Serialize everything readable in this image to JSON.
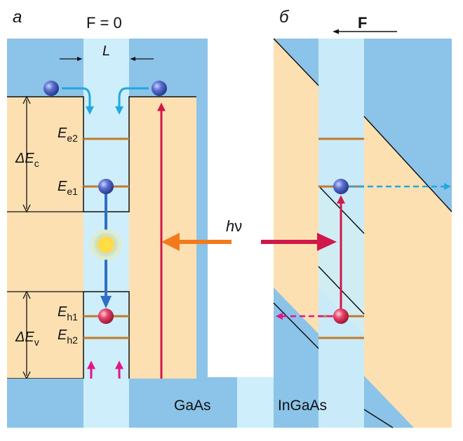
{
  "panels": {
    "a": {
      "letter": "а",
      "field": "F = 0",
      "width_label": "L"
    },
    "b": {
      "letter": "б",
      "field": "F"
    }
  },
  "levels": {
    "delta_ec": {
      "main": "ΔE",
      "sub": "c"
    },
    "delta_ev": {
      "main": "ΔE",
      "sub": "v"
    },
    "ee2": {
      "main": "E",
      "sub": "e2"
    },
    "ee1": {
      "main": "E",
      "sub": "e1"
    },
    "eh1": {
      "main": "E",
      "sub": "h1"
    },
    "eh2": {
      "main": "E",
      "sub": "h2"
    }
  },
  "photon": {
    "main": "h",
    "sub": "ν"
  },
  "materials": {
    "barrier": "GaAs",
    "well": "InGaAs"
  },
  "colors": {
    "barrier_band": "#fde0b2",
    "well": "#cdeefa",
    "gap_blue": "#8cc3e8",
    "level": "#c37a2a",
    "electron": "#4f66c8",
    "hole": "#e23a5c",
    "absorb_arrow": "#d0184a",
    "emit_arrow": "#f27a1e",
    "capture_electron_arrow": "#21a8e0",
    "capture_hole_arrow": "#e0168c",
    "recomb_arrow": "#2f6fc4"
  }
}
